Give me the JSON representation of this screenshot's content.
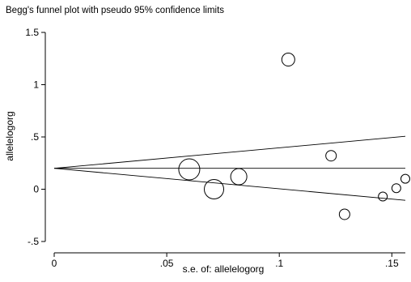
{
  "chart_data": {
    "type": "scatter",
    "title": "Begg's funnel plot with pseudo 95% confidence limits",
    "xlabel": "s.e. of: allelelogorg",
    "ylabel": "allelelogorg",
    "xlim": [
      0,
      0.156
    ],
    "ylim": [
      -0.5,
      1.5
    ],
    "x_ticks": [
      0,
      0.05,
      0.1,
      0.15
    ],
    "x_tick_labels": [
      "0",
      ".05",
      ".1",
      ".15"
    ],
    "y_ticks": [
      -0.5,
      0,
      0.5,
      1,
      1.5
    ],
    "y_tick_labels": [
      "-.5",
      "0",
      ".5",
      "1",
      "1.5"
    ],
    "grid": false,
    "points": [
      {
        "x": 0.06,
        "y": 0.19,
        "size": 13
      },
      {
        "x": 0.071,
        "y": 0.0,
        "size": 12
      },
      {
        "x": 0.082,
        "y": 0.12,
        "size": 10
      },
      {
        "x": 0.104,
        "y": 1.24,
        "size": 8
      },
      {
        "x": 0.123,
        "y": 0.32,
        "size": 6.5
      },
      {
        "x": 0.129,
        "y": -0.24,
        "size": 6.5
      },
      {
        "x": 0.146,
        "y": -0.07,
        "size": 5.5
      },
      {
        "x": 0.152,
        "y": 0.01,
        "size": 5.5
      },
      {
        "x": 0.156,
        "y": 0.1,
        "size": 5.5
      }
    ],
    "pooled_estimate": 0.2,
    "confidence_limits": {
      "upper": [
        [
          0,
          0.2
        ],
        [
          0.156,
          0.506
        ]
      ],
      "lower": [
        [
          0,
          0.2
        ],
        [
          0.156,
          -0.106
        ]
      ]
    }
  }
}
